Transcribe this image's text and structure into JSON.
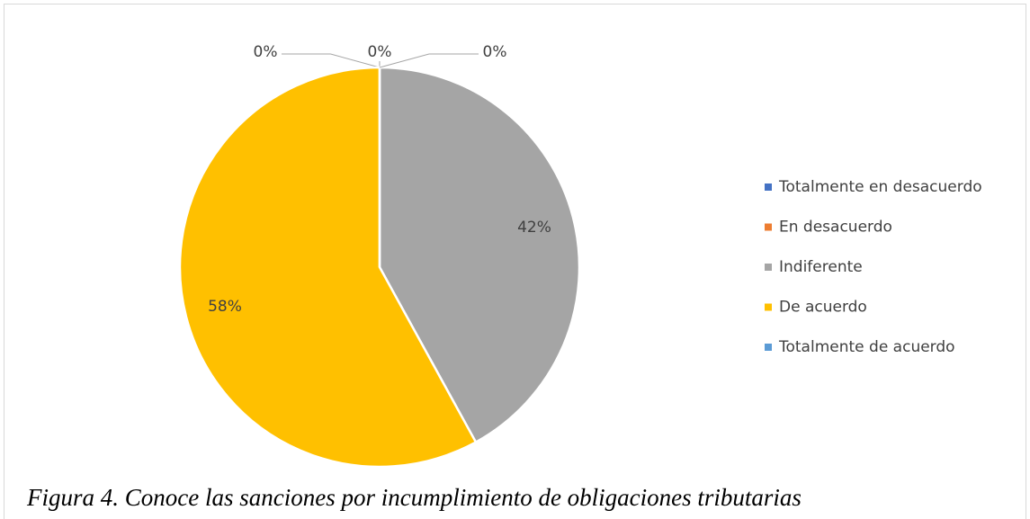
{
  "chart_data": {
    "type": "pie",
    "categories": [
      "Totalmente en desacuerdo",
      "En desacuerdo",
      "Indiferente",
      "De acuerdo",
      "Totalmente de acuerdo"
    ],
    "values": [
      0,
      0,
      42,
      58,
      0
    ],
    "value_labels": [
      "0%",
      "0%",
      "42%",
      "58%",
      "0%"
    ],
    "colors": [
      "#4472c4",
      "#ed7d31",
      "#a5a5a5",
      "#ffc000",
      "#5b9bd5"
    ],
    "legend": "right",
    "caption": "Figura 4. Conoce las sanciones por incumplimiento de obligaciones tributarias"
  }
}
